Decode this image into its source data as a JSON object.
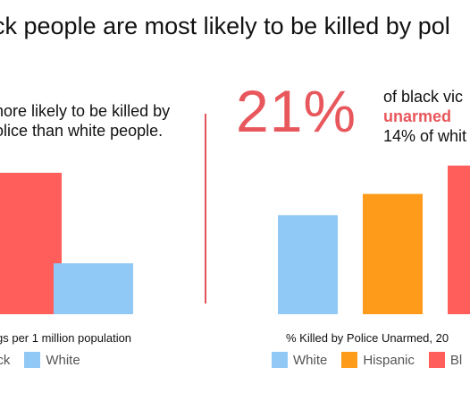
{
  "headline": "ck people are most likely to be killed by pol",
  "left_panel": {
    "text_line1": "nore likely to be killed by",
    "text_line2": "olice than white people.",
    "xlabel": "gs per 1 million population",
    "legend": [
      {
        "label": "ack",
        "color": "#ff5e5b"
      },
      {
        "label": "White",
        "color": "#90c9f5"
      }
    ]
  },
  "right_panel": {
    "big_percent": "21%",
    "text_line1": "of black vic",
    "text_highlight": "unarmed",
    "text_line3": "14% of whit",
    "xlabel": "% Killed by Police Unarmed, 20",
    "legend": [
      {
        "label": "White",
        "color": "#90c9f5"
      },
      {
        "label": "Hispanic",
        "color": "#ff9b1a"
      },
      {
        "label": "Bl",
        "color": "#ff5e5b"
      }
    ]
  },
  "colors": {
    "accent_red": "#e8575c",
    "divider": "#e0545a"
  },
  "chart_data": [
    {
      "type": "bar",
      "categories": [
        "Black",
        "White"
      ],
      "values": [
        100,
        36
      ],
      "xlabel": "gs per 1 million population",
      "colors": [
        "#ff5e5b",
        "#90c9f5"
      ]
    },
    {
      "type": "bar",
      "categories": [
        "White",
        "Hispanic",
        "Black"
      ],
      "values": [
        14,
        17,
        21
      ],
      "xlabel": "% Killed by Police Unarmed, 20",
      "colors": [
        "#90c9f5",
        "#ff9b1a",
        "#ff5e5b"
      ]
    }
  ]
}
